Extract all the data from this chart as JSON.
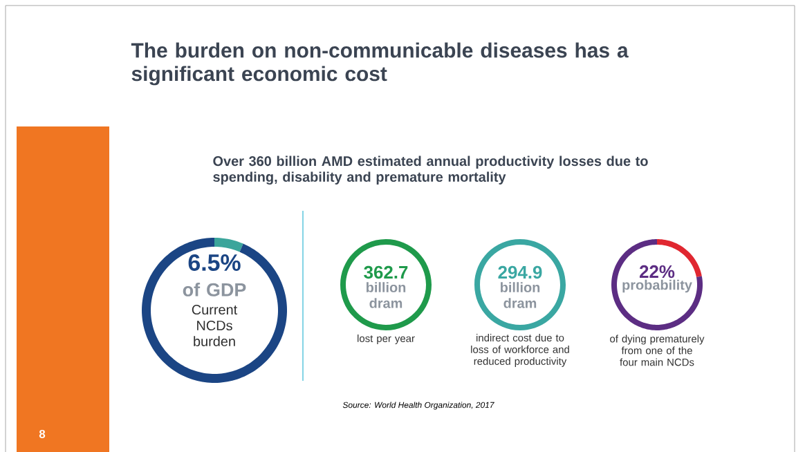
{
  "chart_data": [
    {
      "type": "other",
      "title": "The burden on non-communicable diseases has a significant economic cost",
      "subtitle": "Over 360 billion AMD estimated annual productivity losses due to spending, disability and premature mortality",
      "annotations": [
        "Source: World Health Organization, 2017",
        "8"
      ]
    },
    {
      "type": "donut",
      "categories": [
        null,
        null
      ],
      "values": [
        6.5,
        93.5
      ],
      "colors": [
        "#3ba59b",
        "#1b4584"
      ],
      "annotations": [
        "6.5%",
        "of GDP",
        "Current NCDs burden"
      ]
    },
    {
      "type": "other",
      "annotations": [
        "362.7",
        "billion dram",
        "lost per year"
      ]
    },
    {
      "type": "other",
      "annotations": [
        "294.9",
        "billion dram",
        "indirect cost due to loss of workforce and reduced productivity"
      ]
    },
    {
      "type": "donut",
      "categories": [
        null,
        null
      ],
      "values": [
        22,
        78
      ],
      "colors": [
        "#e02730",
        "#5c2d83"
      ],
      "annotations": [
        "22%",
        "probability",
        "of dying prematurely from one of the four main NCDs"
      ]
    }
  ]
}
